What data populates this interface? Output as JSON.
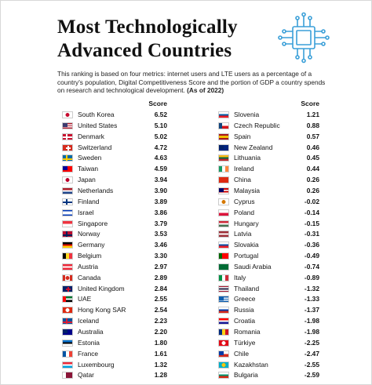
{
  "header": {
    "title": [
      "Most Technologically",
      "Advanced Countries"
    ],
    "description": "This ranking is based on four metrics: internet users and LTE users as a percentage of a country's population, Digital Competitiveness Score and the portion of GDP a country spends on research and technological development.",
    "date_note": "(As of 2022)"
  },
  "tables": [
    {
      "score_header": "Score",
      "rows": [
        [
          "South Korea",
          "6.52"
        ],
        [
          "United States",
          "5.10"
        ],
        [
          "Denmark",
          "5.02"
        ],
        [
          "Switzerland",
          "4.72"
        ],
        [
          "Sweden",
          "4.63"
        ],
        [
          "Taiwan",
          "4.59"
        ],
        [
          "Japan",
          "3.94"
        ],
        [
          "Netherlands",
          "3.90"
        ],
        [
          "Finland",
          "3.89"
        ],
        [
          "Israel",
          "3.86"
        ],
        [
          "Singapore",
          "3.79"
        ],
        [
          "Norway",
          "3.53"
        ],
        [
          "Germany",
          "3.46"
        ],
        [
          "Belgium",
          "3.30"
        ],
        [
          "Austria",
          "2.97"
        ],
        [
          "Canada",
          "2.89"
        ],
        [
          "United Kingdom",
          "2.84"
        ],
        [
          "UAE",
          "2.55"
        ],
        [
          "Hong Kong SAR",
          "2.54"
        ],
        [
          "Iceland",
          "2.23"
        ],
        [
          "Australia",
          "2.20"
        ],
        [
          "Estonia",
          "1.80"
        ],
        [
          "France",
          "1.61"
        ],
        [
          "Luxembourg",
          "1.32"
        ],
        [
          "Qatar",
          "1.28"
        ]
      ]
    },
    {
      "score_header": "Score",
      "rows": [
        [
          "Slovenia",
          "1.21"
        ],
        [
          "Czech Republic",
          "0.88"
        ],
        [
          "Spain",
          "0.57"
        ],
        [
          "New Zealand",
          "0.46"
        ],
        [
          "Lithuania",
          "0.45"
        ],
        [
          "Ireland",
          "0.44"
        ],
        [
          "China",
          "0.26"
        ],
        [
          "Malaysia",
          "0.26"
        ],
        [
          "Cyprus",
          "-0.02"
        ],
        [
          "Poland",
          "-0.14"
        ],
        [
          "Hungary",
          "-0.15"
        ],
        [
          "Latvia",
          "-0.31"
        ],
        [
          "Slovakia",
          "-0.36"
        ],
        [
          "Portugal",
          "-0.49"
        ],
        [
          "Saudi Arabia",
          "-0.74"
        ],
        [
          "Italy",
          "-0.89"
        ],
        [
          "Thailand",
          "-1.32"
        ],
        [
          "Greece",
          "-1.33"
        ],
        [
          "Russia",
          "-1.37"
        ],
        [
          "Croatia",
          "-1.98"
        ],
        [
          "Romania",
          "-1.98"
        ],
        [
          "Türkiye",
          "-2.25"
        ],
        [
          "Chile",
          "-2.47"
        ],
        [
          "Kazakhstan",
          "-2.55"
        ],
        [
          "Bulgaria",
          "-2.59"
        ]
      ]
    }
  ]
}
